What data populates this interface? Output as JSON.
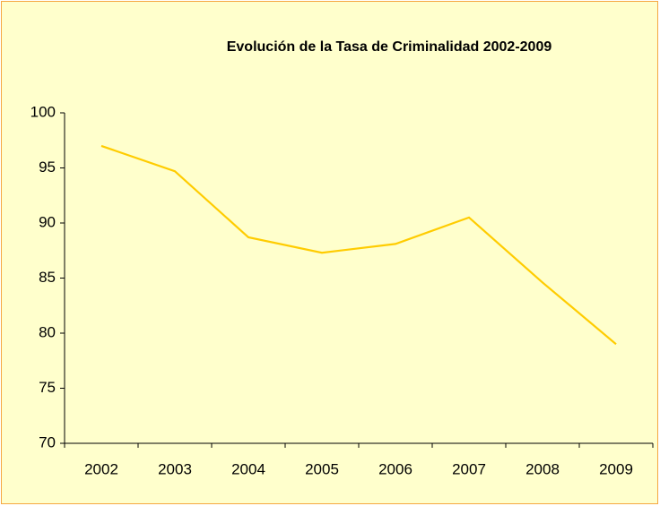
{
  "chart_data": {
    "type": "line",
    "title": "Evolución de la Tasa de Criminalidad 2002-2009",
    "categories": [
      "2002",
      "2003",
      "2004",
      "2005",
      "2006",
      "2007",
      "2008",
      "2009"
    ],
    "values": [
      97.0,
      94.7,
      88.7,
      87.3,
      88.1,
      90.5,
      84.6,
      79.0
    ],
    "color": "#ffcc00",
    "ylim": [
      70,
      100
    ],
    "yticks": [
      70,
      75,
      80,
      85,
      90,
      95,
      100
    ],
    "grid": false
  }
}
